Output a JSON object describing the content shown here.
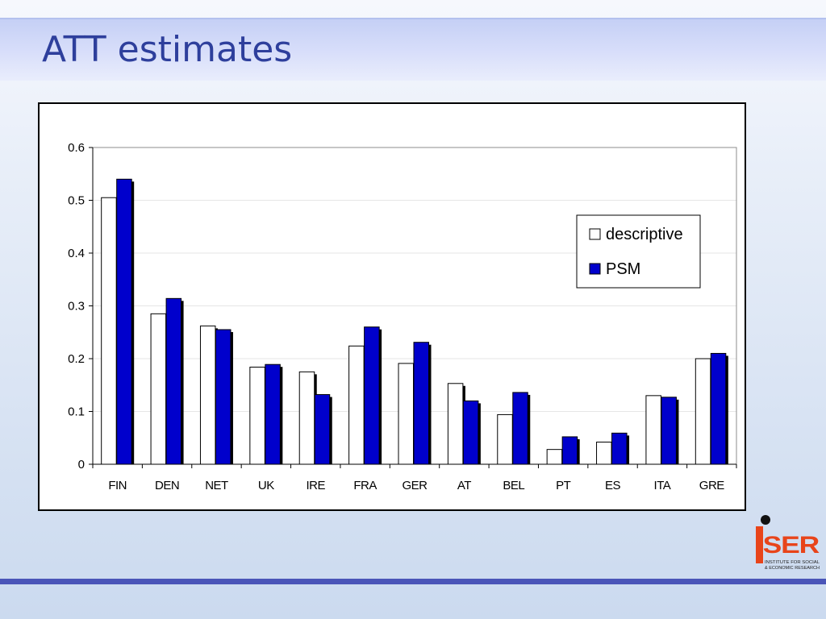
{
  "slide": {
    "title": "ATT estimates"
  },
  "colors": {
    "title": "#2e3f9c",
    "psm_bar": "#0000cc",
    "descriptive_bar": "#ffffff",
    "accent_rule": "#4a55b8",
    "logo_red": "#e8441a"
  },
  "chart_data": {
    "type": "bar",
    "title": "",
    "xlabel": "",
    "ylabel": "",
    "categories": [
      "FIN",
      "DEN",
      "NET",
      "UK",
      "IRE",
      "FRA",
      "GER",
      "AT",
      "BEL",
      "PT",
      "ES",
      "ITA",
      "GRE"
    ],
    "series": [
      {
        "name": "descriptive",
        "color": "#ffffff",
        "values": [
          0.505,
          0.285,
          0.262,
          0.184,
          0.175,
          0.224,
          0.191,
          0.153,
          0.094,
          0.028,
          0.042,
          0.13,
          0.2
        ]
      },
      {
        "name": "PSM",
        "color": "#0000cc",
        "values": [
          0.54,
          0.314,
          0.255,
          0.189,
          0.132,
          0.26,
          0.231,
          0.12,
          0.136,
          0.052,
          0.059,
          0.127,
          0.21
        ]
      }
    ],
    "ylim": [
      0,
      0.6
    ],
    "yticks": [
      "0",
      "0.1",
      "0.2",
      "0.3",
      "0.4",
      "0.5",
      "0.6"
    ],
    "grid": true,
    "legend": "right"
  },
  "logo": {
    "text": "iSER",
    "subtitle_1": "INSTITUTE FOR SOCIAL",
    "subtitle_2": "& ECONOMIC RESEARCH"
  }
}
